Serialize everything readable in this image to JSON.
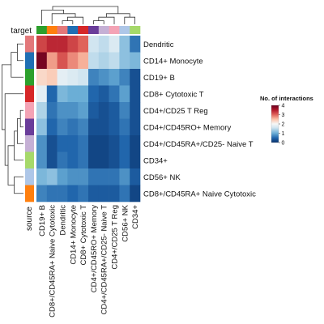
{
  "chart_data": {
    "type": "heatmap",
    "title": "",
    "row_annotation_label": "source",
    "col_annotation_label": "target",
    "rows": [
      "Dendritic",
      "CD14+ Monocyte",
      "CD19+ B",
      "CD8+ Cytotoxic T",
      "CD4+/CD25 T Reg",
      "CD4+/CD45RO+ Memory",
      "CD4+/CD45RA+/CD25- Naive T",
      "CD34+",
      "CD56+ NK",
      "CD8+/CD45RA+ Naive Cytotoxic"
    ],
    "columns": [
      "CD19+ B",
      "CD8+/CD45RA+ Naive Cytotoxic",
      "Dendritic",
      "CD14+ Monocyte",
      "CD8+ Cytotoxic T",
      "CD4+/CD45RO+ Memory",
      "CD4+/CD45RA+/CD25- Naive T",
      "CD4+/CD25 T Reg",
      "CD56+ NK",
      "CD34+"
    ],
    "values": [
      [
        3.2,
        3.4,
        3.4,
        3.2,
        3.0,
        1.6,
        1.5,
        1.7,
        1.2,
        0.6
      ],
      [
        3.9,
        2.7,
        3.1,
        2.8,
        2.6,
        1.5,
        1.4,
        1.5,
        1.2,
        1.1
      ],
      [
        2.3,
        2.4,
        1.8,
        1.7,
        1.6,
        0.7,
        0.8,
        0.9,
        0.7,
        0.3
      ],
      [
        1.8,
        0.5,
        1.1,
        1.0,
        1.0,
        0.5,
        0.4,
        0.6,
        0.9,
        0.3
      ],
      [
        1.4,
        0.6,
        0.8,
        0.8,
        0.9,
        0.4,
        0.3,
        0.4,
        0.7,
        0.3
      ],
      [
        1.2,
        0.5,
        0.7,
        0.6,
        0.7,
        0.3,
        0.3,
        0.4,
        0.6,
        0.3
      ],
      [
        0.8,
        0.3,
        0.5,
        0.5,
        0.6,
        0.2,
        0.2,
        0.3,
        0.5,
        0.2
      ],
      [
        0.8,
        0.3,
        0.6,
        0.5,
        0.6,
        0.2,
        0.2,
        0.3,
        0.5,
        0.2
      ],
      [
        1.1,
        1.2,
        0.9,
        0.8,
        0.8,
        0.6,
        0.6,
        0.6,
        0.8,
        0.4
      ],
      [
        0.7,
        0.6,
        0.6,
        0.5,
        0.6,
        0.4,
        0.4,
        0.4,
        0.6,
        0.2
      ]
    ],
    "color_scale": {
      "min": 0,
      "max": 4,
      "stops": [
        [
          0,
          "#08306b"
        ],
        [
          0.5,
          "#2166ac"
        ],
        [
          1.0,
          "#6baed6"
        ],
        [
          1.6,
          "#d1e5f0"
        ],
        [
          2.0,
          "#f7f7f7"
        ],
        [
          2.5,
          "#fbc3a9"
        ],
        [
          3.0,
          "#e0635a"
        ],
        [
          3.5,
          "#b2182b"
        ],
        [
          4.0,
          "#67001f"
        ]
      ]
    },
    "legend": {
      "title": "No. of interactions",
      "ticks": [
        "0",
        "1",
        "2",
        "3",
        "4"
      ],
      "placement": "right"
    },
    "cell_type_colors": {
      "Dendritic": "#e3787a",
      "CD14+ Monocyte": "#1f6fb4",
      "CD19+ B": "#2ca02c",
      "CD8+ Cytotoxic T": "#d62728",
      "CD4+/CD25 T Reg": "#f4a3b5",
      "CD4+/CD45RO+ Memory": "#6a3d9a",
      "CD4+/CD45RA+/CD25- Naive T": "#c5b0d5",
      "CD34+": "#a6d96a",
      "CD56+ NK": "#aec7e8",
      "CD8+/CD45RA+ Naive Cytotoxic": "#ff7f0e"
    }
  }
}
